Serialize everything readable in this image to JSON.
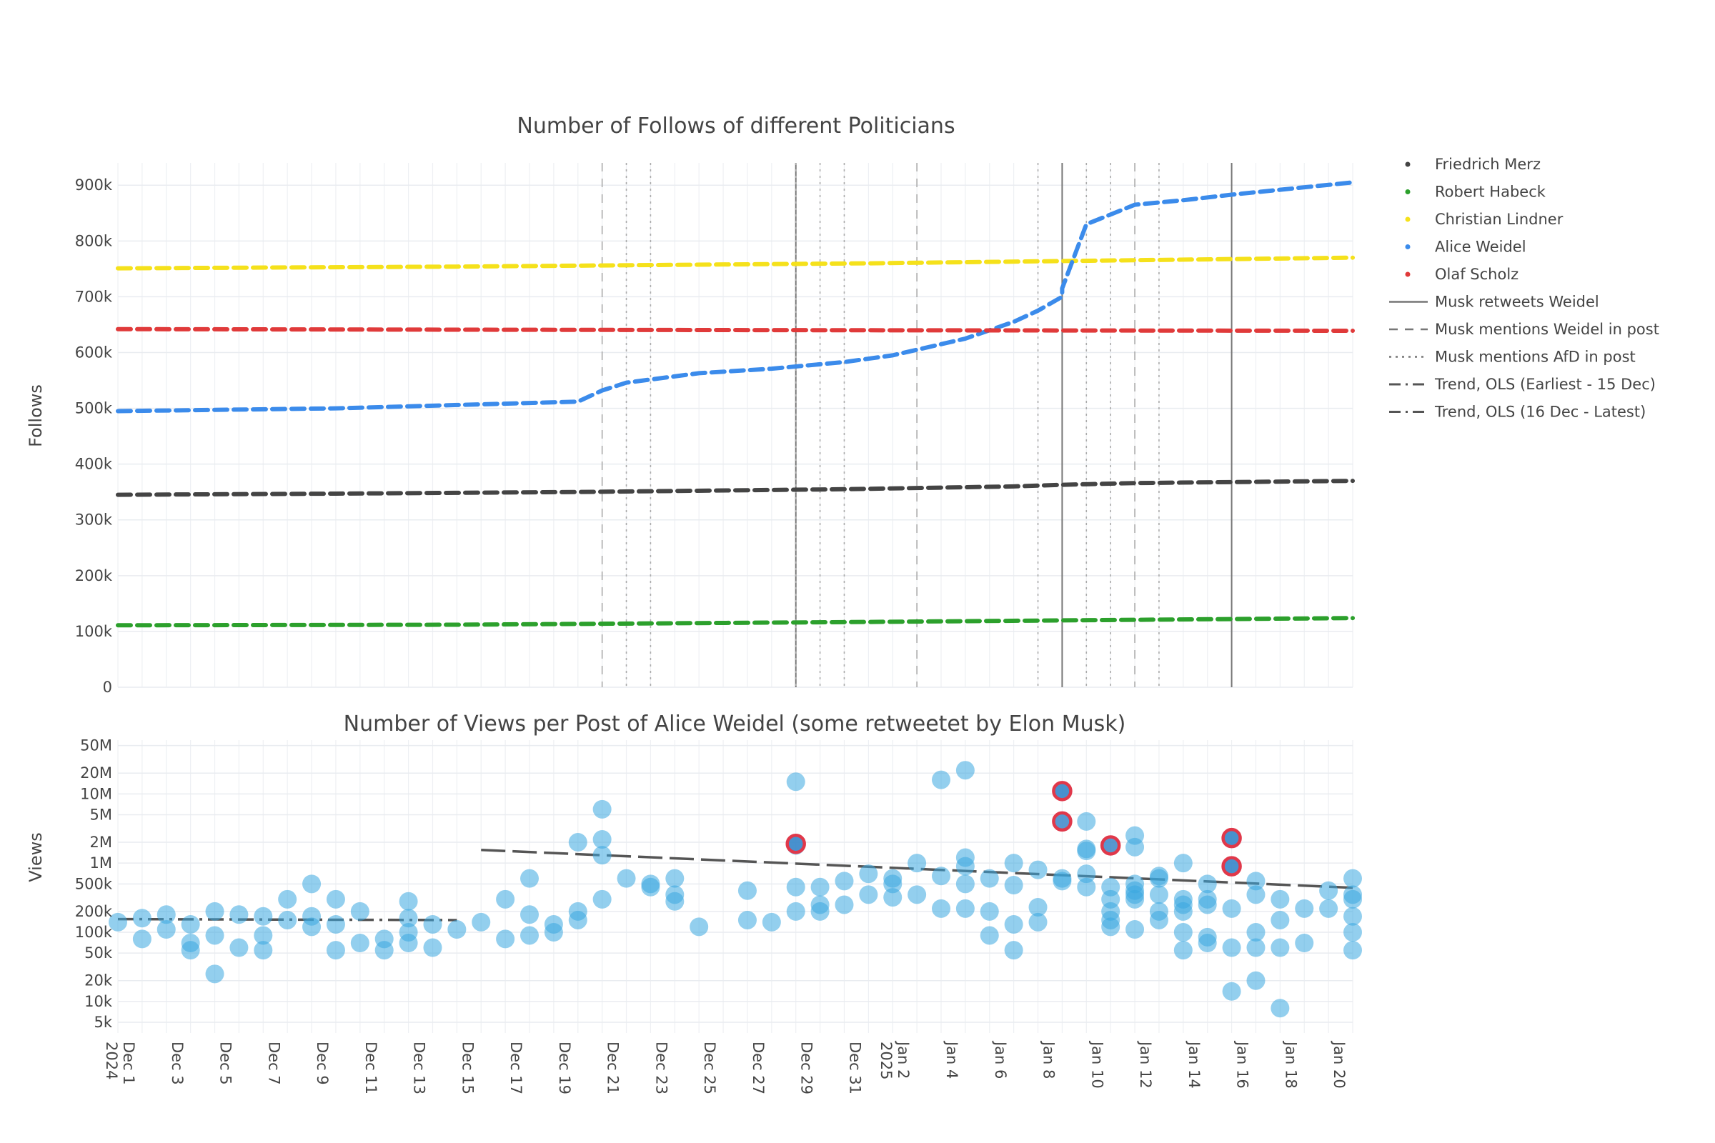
{
  "chart_data": [
    {
      "type": "line",
      "title": "Number of Follows of different Politicians",
      "ylabel": "Follows",
      "xlabel": "",
      "x_range": [
        "2024-12-01",
        "2025-01-21"
      ],
      "ylim": [
        0,
        940000
      ],
      "yticks": [
        0,
        100000,
        200000,
        300000,
        400000,
        500000,
        600000,
        700000,
        800000,
        900000
      ],
      "ytick_labels": [
        "0",
        "100k",
        "200k",
        "300k",
        "400k",
        "500k",
        "600k",
        "700k",
        "800k",
        "900k"
      ],
      "grid": true,
      "legend_position": "right",
      "series": [
        {
          "name": "Friedrich Merz",
          "color": "#444444",
          "x": [
            "2024-12-01",
            "2024-12-10",
            "2024-12-20",
            "2024-12-31",
            "2025-01-07",
            "2025-01-09",
            "2025-01-12",
            "2025-01-21"
          ],
          "y": [
            345000,
            347000,
            350000,
            355000,
            360000,
            363000,
            366000,
            370000
          ]
        },
        {
          "name": "Robert Habeck",
          "color": "#2ca02c",
          "x": [
            "2024-12-01",
            "2024-12-15",
            "2025-01-01",
            "2025-01-21"
          ],
          "y": [
            111000,
            112000,
            117000,
            124000
          ]
        },
        {
          "name": "Christian Lindner",
          "color": "#f5e11b",
          "x": [
            "2024-12-01",
            "2024-12-15",
            "2025-01-01",
            "2025-01-09",
            "2025-01-21"
          ],
          "y": [
            751000,
            754000,
            760000,
            764000,
            770000
          ]
        },
        {
          "name": "Alice Weidel",
          "color": "#3b8beb",
          "x": [
            "2024-12-01",
            "2024-12-10",
            "2024-12-20",
            "2024-12-21",
            "2024-12-22",
            "2024-12-25",
            "2024-12-28",
            "2024-12-31",
            "2025-01-02",
            "2025-01-05",
            "2025-01-07",
            "2025-01-08",
            "2025-01-09",
            "2025-01-09",
            "2025-01-10",
            "2025-01-12",
            "2025-01-14",
            "2025-01-16",
            "2025-01-21"
          ],
          "y": [
            495000,
            500000,
            512000,
            532000,
            546000,
            563000,
            571000,
            583000,
            595000,
            625000,
            655000,
            675000,
            700000,
            715000,
            830000,
            865000,
            873000,
            883000,
            905000
          ]
        },
        {
          "name": "Olaf Scholz",
          "color": "#e03a3a",
          "x": [
            "2024-12-01",
            "2024-12-15",
            "2025-01-01",
            "2025-01-21"
          ],
          "y": [
            642000,
            641000,
            640000,
            639000
          ]
        }
      ],
      "event_lines": [
        {
          "name": "Musk retweets Weidel",
          "style": "solid",
          "x": [
            "2024-12-29",
            "2025-01-09",
            "2025-01-16"
          ]
        },
        {
          "name": "Musk mentions Weidel in post",
          "style": "dashed",
          "x": [
            "2024-12-21",
            "2025-01-03",
            "2025-01-12"
          ]
        },
        {
          "name": "Musk mentions AfD in post",
          "style": "dotted",
          "x": [
            "2024-12-22",
            "2024-12-23",
            "2024-12-29",
            "2024-12-30",
            "2024-12-31",
            "2025-01-08",
            "2025-01-10",
            "2025-01-11",
            "2025-01-13"
          ]
        }
      ],
      "trend_legend": [
        {
          "name": "Trend, OLS (Earliest - 15 Dec)",
          "style": "dashdot"
        },
        {
          "name": "Trend, OLS (16 Dec - Latest)",
          "style": "dashdot"
        }
      ]
    },
    {
      "type": "scatter",
      "title": "Number of Views per Post of Alice Weidel (some retweetet by Elon Musk)",
      "ylabel": "Views",
      "xlabel": "",
      "yscale": "log",
      "ylim": [
        3500,
        60000000
      ],
      "yticks": [
        5000,
        10000,
        20000,
        50000,
        100000,
        200000,
        500000,
        1000000,
        2000000,
        5000000,
        10000000,
        20000000,
        50000000
      ],
      "ytick_labels": [
        "5k",
        "10k",
        "20k",
        "50k",
        "100k",
        "200k",
        "500k",
        "1M",
        "2M",
        "5M",
        "10M",
        "20M",
        "50M"
      ],
      "xtick_labels": [
        "Dec 1\n2024",
        "Dec 3",
        "Dec 5",
        "Dec 7",
        "Dec 9",
        "Dec 11",
        "Dec 13",
        "Dec 15",
        "Dec 17",
        "Dec 19",
        "Dec 21",
        "Dec 23",
        "Dec 25",
        "Dec 27",
        "Dec 29",
        "Dec 31",
        "Jan 2\n2025",
        "Jan 4",
        "Jan 6",
        "Jan 8",
        "Jan 10",
        "Jan 12",
        "Jan 14",
        "Jan 16",
        "Jan 18",
        "Jan 20"
      ],
      "xtick_dates": [
        "2024-12-01",
        "2024-12-03",
        "2024-12-05",
        "2024-12-07",
        "2024-12-09",
        "2024-12-11",
        "2024-12-13",
        "2024-12-15",
        "2024-12-17",
        "2024-12-19",
        "2024-12-21",
        "2024-12-23",
        "2024-12-25",
        "2024-12-27",
        "2024-12-29",
        "2024-12-31",
        "2025-01-02",
        "2025-01-04",
        "2025-01-06",
        "2025-01-08",
        "2025-01-10",
        "2025-01-12",
        "2025-01-14",
        "2025-01-16",
        "2025-01-18",
        "2025-01-20"
      ],
      "grid": true,
      "point_color": "#3ba8e0",
      "retweet_outline_color": "#e0384a",
      "points": [
        [
          "2024-12-01",
          140000
        ],
        [
          "2024-12-02",
          80000
        ],
        [
          "2024-12-02",
          160000
        ],
        [
          "2024-12-03",
          110000
        ],
        [
          "2024-12-03",
          180000
        ],
        [
          "2024-12-04",
          70000
        ],
        [
          "2024-12-04",
          130000
        ],
        [
          "2024-12-04",
          55000
        ],
        [
          "2024-12-05",
          200000
        ],
        [
          "2024-12-05",
          25000
        ],
        [
          "2024-12-05",
          90000
        ],
        [
          "2024-12-06",
          180000
        ],
        [
          "2024-12-06",
          60000
        ],
        [
          "2024-12-07",
          170000
        ],
        [
          "2024-12-07",
          55000
        ],
        [
          "2024-12-07",
          90000
        ],
        [
          "2024-12-08",
          150000
        ],
        [
          "2024-12-08",
          300000
        ],
        [
          "2024-12-09",
          120000
        ],
        [
          "2024-12-09",
          170000
        ],
        [
          "2024-12-09",
          500000
        ],
        [
          "2024-12-10",
          300000
        ],
        [
          "2024-12-10",
          130000
        ],
        [
          "2024-12-10",
          55000
        ],
        [
          "2024-12-11",
          200000
        ],
        [
          "2024-12-11",
          70000
        ],
        [
          "2024-12-12",
          80000
        ],
        [
          "2024-12-12",
          55000
        ],
        [
          "2024-12-13",
          70000
        ],
        [
          "2024-12-13",
          160000
        ],
        [
          "2024-12-13",
          280000
        ],
        [
          "2024-12-13",
          100000
        ],
        [
          "2024-12-14",
          130000
        ],
        [
          "2024-12-14",
          60000
        ],
        [
          "2024-12-15",
          110000
        ],
        [
          "2024-12-16",
          140000
        ],
        [
          "2024-12-17",
          80000
        ],
        [
          "2024-12-17",
          300000
        ],
        [
          "2024-12-18",
          600000
        ],
        [
          "2024-12-18",
          180000
        ],
        [
          "2024-12-18",
          90000
        ],
        [
          "2024-12-19",
          130000
        ],
        [
          "2024-12-19",
          100000
        ],
        [
          "2024-12-20",
          2000000
        ],
        [
          "2024-12-20",
          200000
        ],
        [
          "2024-12-20",
          150000
        ],
        [
          "2024-12-21",
          1300000
        ],
        [
          "2024-12-21",
          300000
        ],
        [
          "2024-12-21",
          6000000
        ],
        [
          "2024-12-21",
          2200000
        ],
        [
          "2024-12-22",
          600000
        ],
        [
          "2024-12-23",
          450000
        ],
        [
          "2024-12-23",
          500000
        ],
        [
          "2024-12-24",
          350000
        ],
        [
          "2024-12-24",
          280000
        ],
        [
          "2024-12-24",
          600000
        ],
        [
          "2024-12-25",
          120000
        ],
        [
          "2024-12-27",
          400000
        ],
        [
          "2024-12-27",
          150000
        ],
        [
          "2024-12-28",
          140000
        ],
        [
          "2024-12-29",
          450000
        ],
        [
          "2024-12-29",
          15000000
        ],
        [
          "2024-12-29",
          1800000
        ],
        [
          "2024-12-29",
          200000
        ],
        [
          "2024-12-30",
          450000
        ],
        [
          "2024-12-30",
          250000
        ],
        [
          "2024-12-30",
          200000
        ],
        [
          "2024-12-31",
          550000
        ],
        [
          "2024-12-31",
          250000
        ],
        [
          "2025-01-01",
          700000
        ],
        [
          "2025-01-01",
          350000
        ],
        [
          "2025-01-02",
          500000
        ],
        [
          "2025-01-02",
          320000
        ],
        [
          "2025-01-02",
          600000
        ],
        [
          "2025-01-03",
          1000000
        ],
        [
          "2025-01-03",
          350000
        ],
        [
          "2025-01-04",
          650000
        ],
        [
          "2025-01-04",
          220000
        ],
        [
          "2025-01-04",
          16000000
        ],
        [
          "2025-01-05",
          900000
        ],
        [
          "2025-01-05",
          1200000
        ],
        [
          "2025-01-05",
          22000000
        ],
        [
          "2025-01-05",
          500000
        ],
        [
          "2025-01-05",
          220000
        ],
        [
          "2025-01-06",
          600000
        ],
        [
          "2025-01-06",
          200000
        ],
        [
          "2025-01-06",
          90000
        ],
        [
          "2025-01-07",
          130000
        ],
        [
          "2025-01-07",
          55000
        ],
        [
          "2025-01-07",
          480000
        ],
        [
          "2025-01-07",
          1000000
        ],
        [
          "2025-01-08",
          800000
        ],
        [
          "2025-01-08",
          230000
        ],
        [
          "2025-01-08",
          140000
        ],
        [
          "2025-01-09",
          550000
        ],
        [
          "2025-01-09",
          11000000
        ],
        [
          "2025-01-09",
          600000
        ],
        [
          "2025-01-10",
          4000000
        ],
        [
          "2025-01-10",
          1500000
        ],
        [
          "2025-01-10",
          450000
        ],
        [
          "2025-01-10",
          1600000
        ],
        [
          "2025-01-10",
          700000
        ],
        [
          "2025-01-11",
          300000
        ],
        [
          "2025-01-11",
          200000
        ],
        [
          "2025-01-11",
          150000
        ],
        [
          "2025-01-11",
          450000
        ],
        [
          "2025-01-11",
          120000
        ],
        [
          "2025-01-12",
          1700000
        ],
        [
          "2025-01-12",
          2500000
        ],
        [
          "2025-01-12",
          400000
        ],
        [
          "2025-01-12",
          350000
        ],
        [
          "2025-01-12",
          300000
        ],
        [
          "2025-01-12",
          500000
        ],
        [
          "2025-01-12",
          110000
        ],
        [
          "2025-01-13",
          600000
        ],
        [
          "2025-01-13",
          350000
        ],
        [
          "2025-01-13",
          200000
        ],
        [
          "2025-01-13",
          650000
        ],
        [
          "2025-01-13",
          150000
        ],
        [
          "2025-01-14",
          300000
        ],
        [
          "2025-01-14",
          250000
        ],
        [
          "2025-01-14",
          100000
        ],
        [
          "2025-01-14",
          55000
        ],
        [
          "2025-01-14",
          1000000
        ],
        [
          "2025-01-14",
          200000
        ],
        [
          "2025-01-15",
          300000
        ],
        [
          "2025-01-15",
          85000
        ],
        [
          "2025-01-15",
          250000
        ],
        [
          "2025-01-15",
          500000
        ],
        [
          "2025-01-15",
          70000
        ],
        [
          "2025-01-16",
          2300000
        ],
        [
          "2025-01-16",
          900000
        ],
        [
          "2025-01-16",
          60000
        ],
        [
          "2025-01-16",
          14000
        ],
        [
          "2025-01-16",
          220000
        ],
        [
          "2025-01-17",
          550000
        ],
        [
          "2025-01-17",
          350000
        ],
        [
          "2025-01-17",
          100000
        ],
        [
          "2025-01-17",
          60000
        ],
        [
          "2025-01-17",
          20000
        ],
        [
          "2025-01-18",
          300000
        ],
        [
          "2025-01-18",
          150000
        ],
        [
          "2025-01-18",
          8000
        ],
        [
          "2025-01-18",
          60000
        ],
        [
          "2025-01-19",
          220000
        ],
        [
          "2025-01-19",
          70000
        ],
        [
          "2025-01-20",
          220000
        ],
        [
          "2025-01-20",
          400000
        ],
        [
          "2025-01-21",
          350000
        ],
        [
          "2025-01-21",
          170000
        ],
        [
          "2025-01-21",
          55000
        ],
        [
          "2025-01-21",
          600000
        ],
        [
          "2025-01-21",
          300000
        ],
        [
          "2025-01-21",
          100000
        ]
      ],
      "retweeted_points": [
        [
          "2024-12-29",
          1900000
        ],
        [
          "2025-01-09",
          11000000
        ],
        [
          "2025-01-09",
          4000000
        ],
        [
          "2025-01-11",
          1800000
        ],
        [
          "2025-01-16",
          2300000
        ],
        [
          "2025-01-16",
          900000
        ]
      ],
      "trend_lines": [
        {
          "name": "Trend, OLS (Earliest - 15 Dec)",
          "x": [
            "2024-12-01",
            "2024-12-15"
          ],
          "y": [
            155000,
            150000
          ],
          "color": "#555555"
        },
        {
          "name": "Trend, OLS (16 Dec - Latest)",
          "x": [
            "2024-12-16",
            "2025-01-21"
          ],
          "y": [
            1550000,
            440000
          ],
          "color": "#555555"
        }
      ]
    }
  ]
}
